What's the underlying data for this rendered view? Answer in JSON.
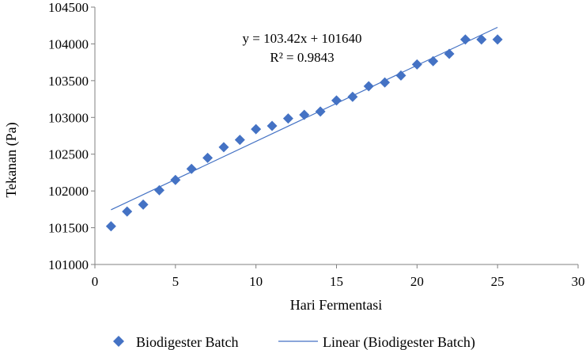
{
  "chart_data": {
    "type": "scatter",
    "xlabel": "Hari Fermentasi",
    "ylabel": "Tekanan (Pa)",
    "xlim": [
      0,
      30
    ],
    "ylim": [
      101000,
      104500
    ],
    "xticks": [
      "0",
      "5",
      "10",
      "15",
      "20",
      "25",
      "30"
    ],
    "yticks": [
      "101000",
      "101500",
      "102000",
      "102500",
      "103000",
      "103500",
      "104000",
      "104500"
    ],
    "grid": false,
    "legend_position": "bottom",
    "series": [
      {
        "name": "Biodigester Batch",
        "marker": "diamond",
        "color": "#4472C4",
        "x": [
          1,
          2,
          3,
          4,
          5,
          6,
          7,
          8,
          9,
          10,
          11,
          12,
          13,
          14,
          15,
          16,
          17,
          18,
          19,
          20,
          21,
          22,
          23,
          24,
          25
        ],
        "y": [
          101520,
          101720,
          101815,
          102010,
          102150,
          102300,
          102450,
          102595,
          102695,
          102840,
          102885,
          102985,
          103035,
          103080,
          103230,
          103280,
          103425,
          103475,
          103570,
          103720,
          103765,
          103865,
          104060,
          104060,
          104060
        ]
      }
    ],
    "trendline": {
      "name": "Linear (Biodigester Batch)",
      "color": "#4472C4",
      "slope": 103.42,
      "intercept": 101640,
      "x_range": [
        1,
        25
      ],
      "equation": "y = 103.42x + 101640",
      "r_squared": "R² = 0.9843"
    }
  }
}
